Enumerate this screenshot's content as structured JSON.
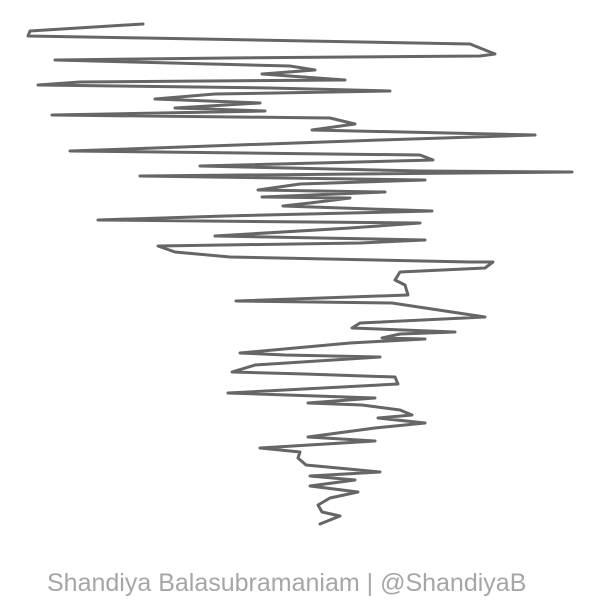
{
  "artwork": {
    "line_color": "#666666"
  },
  "credit": {
    "text": "Shandiya Balasubramaniam | @ShandiyaB",
    "color": "#a6a6a6"
  }
}
